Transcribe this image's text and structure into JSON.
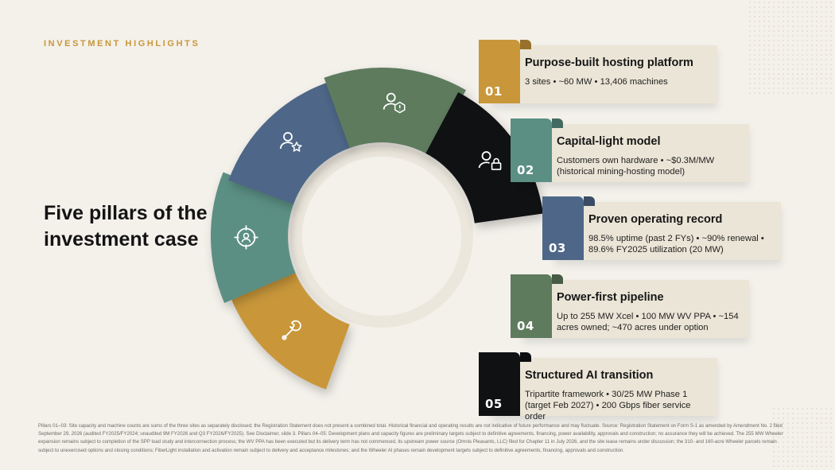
{
  "eyebrow": "INVESTMENT HIGHLIGHTS",
  "headline": "Five pillars of the investment case",
  "pillars": [
    {
      "number": "01",
      "title": "Purpose-built hosting platform",
      "description": "3 sites • ~60 MW • 13,406 machines",
      "color": "#c9973a",
      "icon": "wrench-icon"
    },
    {
      "number": "02",
      "title": "Capital-light model",
      "description": "Customers own hardware • ~$0.3M/MW (historical mining-hosting model)",
      "color": "#5b8f83",
      "icon": "target-user-icon"
    },
    {
      "number": "03",
      "title": "Proven operating record",
      "description": "98.5% uptime (past 2 FYs) • ~90% renewal • 89.6% FY2025 utilization (20 MW)",
      "color": "#4e6788",
      "icon": "user-star-icon"
    },
    {
      "number": "04",
      "title": "Power-first pipeline",
      "description": "Up to 255 MW Xcel • 100 MW WV PPA • ~154 acres owned; ~470 acres under option",
      "color": "#5e7b5e",
      "icon": "user-alert-icon"
    },
    {
      "number": "05",
      "title": "Structured AI transition",
      "description": "Tripartite framework • 30/25 MW Phase 1 (target Feb 2027) • 200 Gbps fiber service order",
      "color": "#0f1112",
      "icon": "user-lock-icon"
    }
  ],
  "footnote": "Pillars 01–03: Site capacity and machine counts are sums of the three sites as separately disclosed; the Registration Statement does not present a combined total. Historical financial and operating results are not indicative of future performance and may fluctuate. Source: Registration Statement on Form S-1 as amended by Amendment No. 2 filed September 29, 2026 (audited FY2025/FY2024; unaudited 9M FY2026 and Q3 FY2026/FY2025). See Disclaimer, slide 3. Pillars 04–05: Development plans and capacity figures are preliminary targets subject to definitive agreements, financing, power availability, approvals and construction; no assurance they will be achieved. The 255 MW Wheeler expansion remains subject to completion of the SPP load study and interconnection process; the WV PPA has been executed but its delivery term has not commenced, its upstream power source (Omnis Pleasants, LLC) filed for Chapter 11 in July 2026, and the site lease remains under discussion; the 310- and 160-acre Wheeler parcels remain subject to unexercised options and closing conditions; FiberLight installation and activation remain subject to delivery and acceptance milestones; and the Wheeler AI phases remain development targets subject to definitive agreements, financing, approvals and construction."
}
